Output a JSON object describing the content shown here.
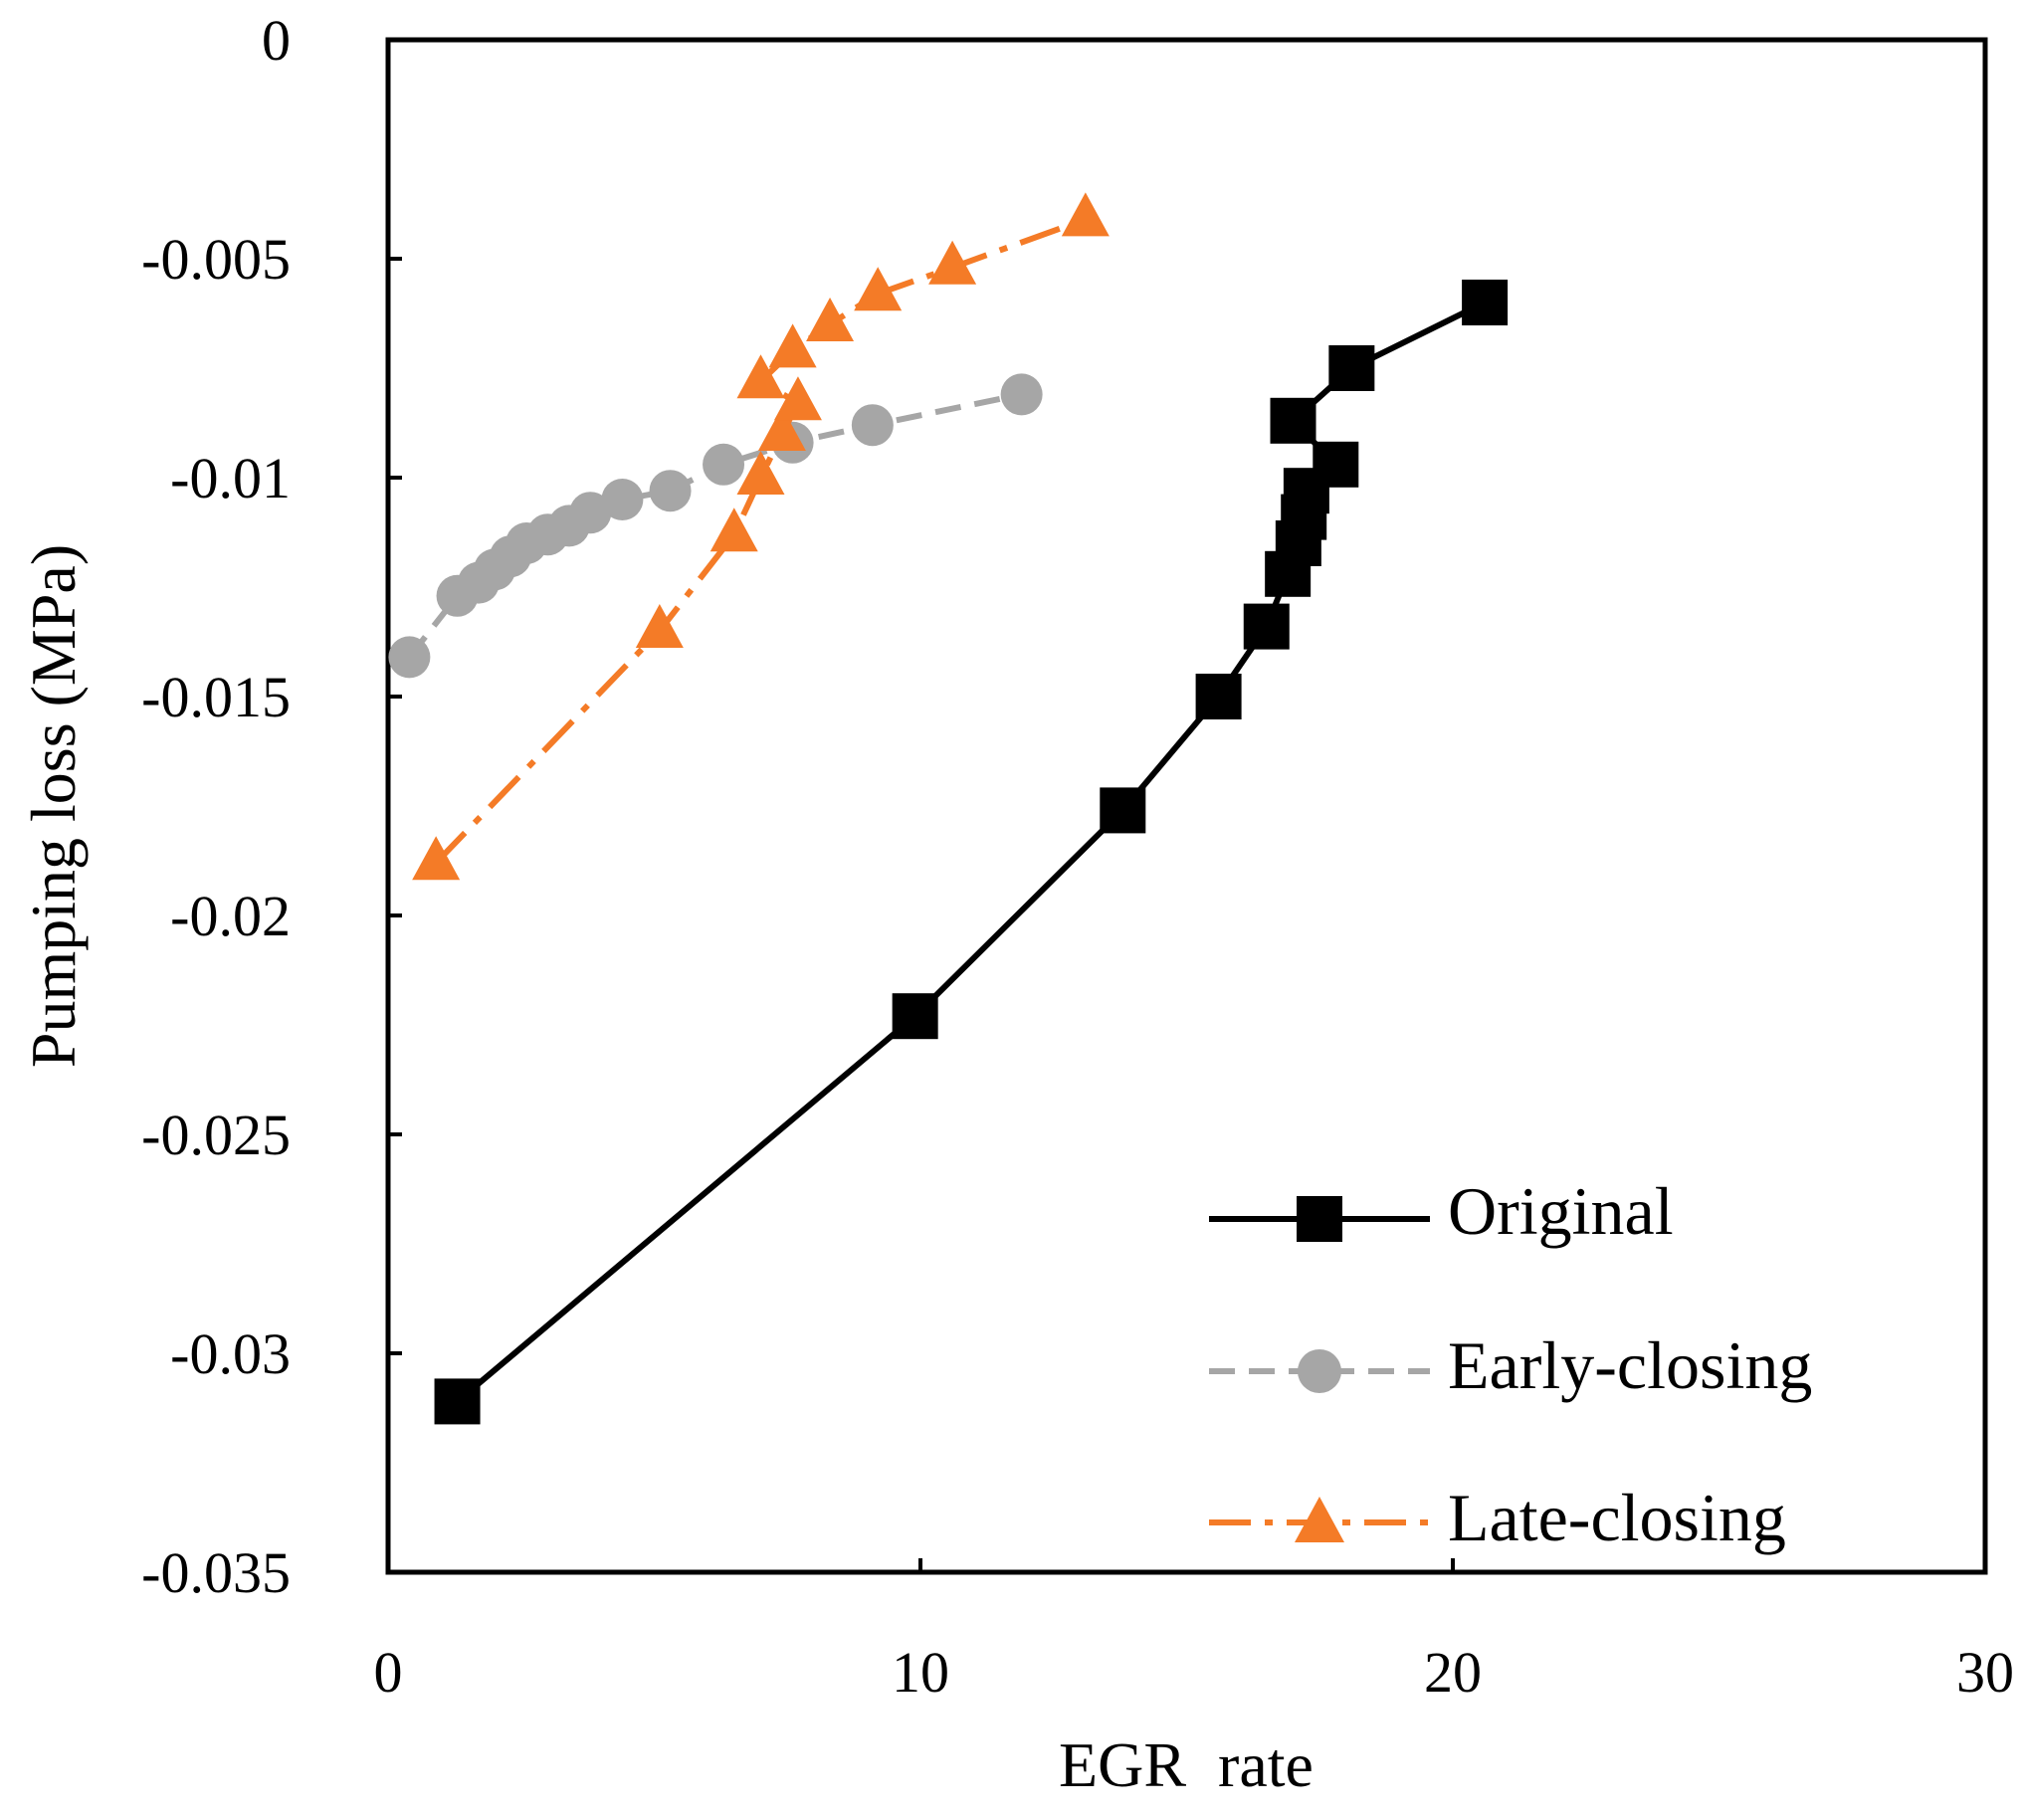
{
  "chart_data": {
    "type": "line",
    "title": "",
    "xlabel": "EGR  rate",
    "ylabel": "Pumping loss (MPa)",
    "xlim": [
      0,
      30
    ],
    "ylim": [
      -0.035,
      0
    ],
    "grid": false,
    "legend_position": "bottom-right",
    "x_ticks": [
      {
        "value": 0,
        "label": "0"
      },
      {
        "value": 10,
        "label": "10"
      },
      {
        "value": 20,
        "label": "20"
      },
      {
        "value": 30,
        "label": "30"
      }
    ],
    "y_ticks": [
      {
        "value": 0,
        "label": "0"
      },
      {
        "value": -0.005,
        "label": "-0.005"
      },
      {
        "value": -0.01,
        "label": "-0.01"
      },
      {
        "value": -0.015,
        "label": "-0.015"
      },
      {
        "value": -0.02,
        "label": "-0.02"
      },
      {
        "value": -0.025,
        "label": "-0.025"
      },
      {
        "value": -0.03,
        "label": "-0.03"
      },
      {
        "value": -0.035,
        "label": "-0.035"
      }
    ],
    "series": [
      {
        "name": "Original",
        "color": "#000000",
        "marker": "square",
        "line_style": "solid",
        "x": [
          1.3,
          9.9,
          13.8,
          15.6,
          16.5,
          16.9,
          17.1,
          17.2,
          17.25,
          17.8,
          17.0,
          18.1,
          20.6
        ],
        "y": [
          -0.0311,
          -0.0223,
          -0.0176,
          -0.015,
          -0.0134,
          -0.0122,
          -0.0115,
          -0.0109,
          -0.0103,
          -0.0097,
          -0.0087,
          -0.0075,
          -0.006
        ]
      },
      {
        "name": "Early-closing",
        "color": "#a6a6a6",
        "marker": "circle",
        "line_style": "dashed",
        "x": [
          0.4,
          1.3,
          1.7,
          2.0,
          2.3,
          2.6,
          3.0,
          3.4,
          3.8,
          4.4,
          5.3,
          6.3,
          7.6,
          9.1,
          11.9
        ],
        "y": [
          -0.0141,
          -0.0127,
          -0.0124,
          -0.0121,
          -0.0118,
          -0.0115,
          -0.0113,
          -0.0111,
          -0.0108,
          -0.0105,
          -0.0103,
          -0.0097,
          -0.0092,
          -0.0088,
          -0.0081
        ]
      },
      {
        "name": "Late-closing",
        "color": "#f47b27",
        "marker": "triangle",
        "line_style": "dash-dot",
        "x": [
          0.9,
          5.1,
          6.5,
          7.0,
          7.4,
          7.7,
          7.0,
          7.6,
          8.3,
          9.2,
          10.6,
          13.1
        ],
        "y": [
          -0.0188,
          -0.0135,
          -0.0113,
          -0.01,
          -0.009,
          -0.0083,
          -0.0078,
          -0.0071,
          -0.0065,
          -0.0058,
          -0.0052,
          -0.0041
        ]
      }
    ]
  }
}
